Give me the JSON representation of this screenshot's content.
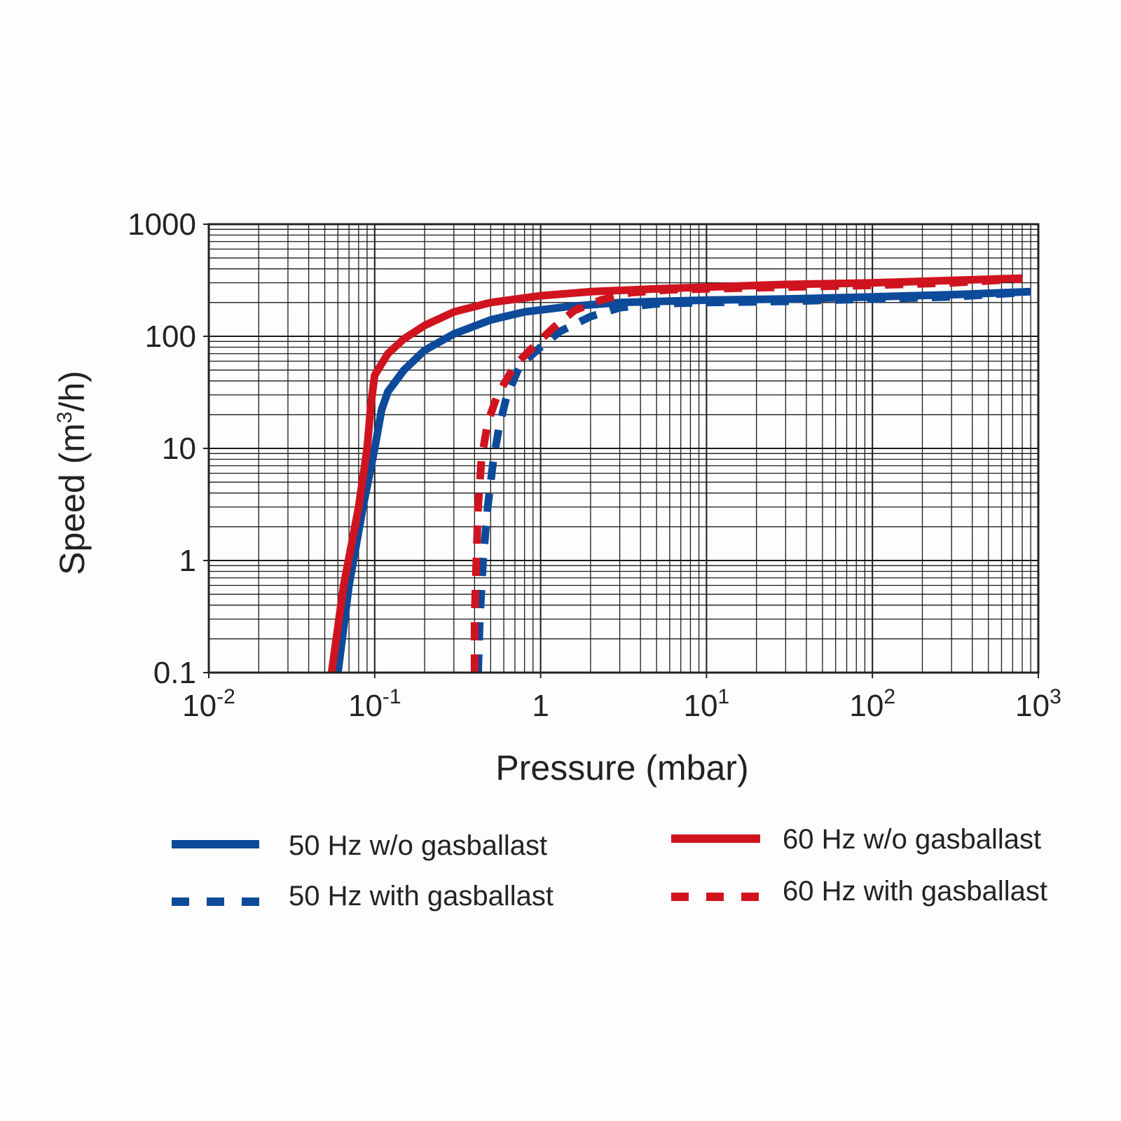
{
  "chart_data": {
    "type": "line",
    "scale": "log-log",
    "title": "",
    "xlabel": "Pressure (mbar)",
    "ylabel_parts": {
      "prefix": "Speed (m",
      "sup": "3",
      "suffix": "/h)"
    },
    "xlim": [
      0.01,
      1000
    ],
    "ylim": [
      0.1,
      1000
    ],
    "x_ticks": [
      {
        "value": 0.01,
        "base": "10",
        "exp": "-2"
      },
      {
        "value": 0.1,
        "base": "10",
        "exp": "-1"
      },
      {
        "value": 1,
        "base": "1",
        "exp": ""
      },
      {
        "value": 10,
        "base": "10",
        "exp": "1"
      },
      {
        "value": 100,
        "base": "10",
        "exp": "2"
      },
      {
        "value": 1000,
        "base": "10",
        "exp": "3"
      }
    ],
    "y_ticks": [
      {
        "value": 0.1,
        "label": "0.1"
      },
      {
        "value": 1,
        "label": "1"
      },
      {
        "value": 10,
        "label": "10"
      },
      {
        "value": 100,
        "label": "100"
      },
      {
        "value": 1000,
        "label": "1000"
      }
    ],
    "grid": true,
    "legend_position": "bottom",
    "series": [
      {
        "name": "50 Hz w/o gasballast",
        "color": "#0d4a9a",
        "style": "solid",
        "points": [
          [
            0.06,
            0.1
          ],
          [
            0.07,
            0.6
          ],
          [
            0.085,
            3
          ],
          [
            0.1,
            10
          ],
          [
            0.11,
            22
          ],
          [
            0.12,
            32
          ],
          [
            0.15,
            50
          ],
          [
            0.2,
            75
          ],
          [
            0.3,
            105
          ],
          [
            0.5,
            140
          ],
          [
            0.8,
            165
          ],
          [
            1.5,
            185
          ],
          [
            3,
            200
          ],
          [
            10,
            210
          ],
          [
            30,
            215
          ],
          [
            100,
            225
          ],
          [
            300,
            235
          ],
          [
            900,
            250
          ]
        ]
      },
      {
        "name": "50 Hz with gasballast",
        "color": "#0d4a9a",
        "style": "dashed",
        "points": [
          [
            0.42,
            0.1
          ],
          [
            0.43,
            0.3
          ],
          [
            0.45,
            1
          ],
          [
            0.48,
            3
          ],
          [
            0.52,
            8
          ],
          [
            0.56,
            15
          ],
          [
            0.62,
            28
          ],
          [
            0.75,
            55
          ],
          [
            1,
            80
          ],
          [
            1.3,
            110
          ],
          [
            2,
            150
          ],
          [
            3,
            180
          ],
          [
            5,
            195
          ],
          [
            10,
            200
          ],
          [
            30,
            205
          ],
          [
            100,
            215
          ],
          [
            300,
            225
          ],
          [
            800,
            245
          ]
        ]
      },
      {
        "name": "60 Hz w/o gasballast",
        "color": "#d0141f",
        "style": "solid",
        "points": [
          [
            0.055,
            0.1
          ],
          [
            0.065,
            0.6
          ],
          [
            0.08,
            3
          ],
          [
            0.09,
            10
          ],
          [
            0.095,
            25
          ],
          [
            0.1,
            45
          ],
          [
            0.12,
            70
          ],
          [
            0.15,
            95
          ],
          [
            0.2,
            125
          ],
          [
            0.3,
            165
          ],
          [
            0.5,
            200
          ],
          [
            1,
            230
          ],
          [
            2,
            250
          ],
          [
            5,
            265
          ],
          [
            10,
            275
          ],
          [
            30,
            290
          ],
          [
            100,
            300
          ],
          [
            300,
            315
          ],
          [
            800,
            330
          ]
        ]
      },
      {
        "name": "60 Hz with gasballast",
        "color": "#d0141f",
        "style": "dashed",
        "points": [
          [
            0.4,
            0.1
          ],
          [
            0.4,
            0.3
          ],
          [
            0.41,
            1
          ],
          [
            0.42,
            3
          ],
          [
            0.44,
            8
          ],
          [
            0.48,
            17
          ],
          [
            0.55,
            30
          ],
          [
            0.7,
            55
          ],
          [
            0.9,
            80
          ],
          [
            1.2,
            120
          ],
          [
            1.6,
            170
          ],
          [
            2.3,
            210
          ],
          [
            3.5,
            245
          ],
          [
            6,
            260
          ],
          [
            10,
            265
          ],
          [
            30,
            275
          ],
          [
            100,
            285
          ],
          [
            300,
            300
          ],
          [
            800,
            325
          ]
        ]
      }
    ]
  }
}
